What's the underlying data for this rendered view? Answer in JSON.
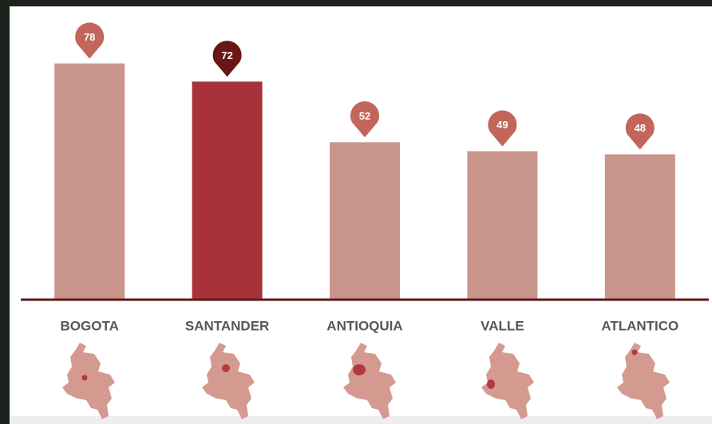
{
  "chart_data": {
    "type": "bar",
    "categories": [
      "BOGOTA",
      "SANTANDER",
      "ANTIOQUIA",
      "VALLE",
      "ATLANTICO"
    ],
    "values": [
      78,
      72,
      52,
      49,
      48
    ],
    "colors": [
      "#c9958a",
      "#a8323a",
      "#c9958a",
      "#c9958a",
      "#c9958a"
    ],
    "pin_colors": [
      "#c2655b",
      "#6a1616",
      "#c2655b",
      "#c2655b",
      "#c2655b"
    ],
    "ylim": [
      0,
      80
    ]
  }
}
